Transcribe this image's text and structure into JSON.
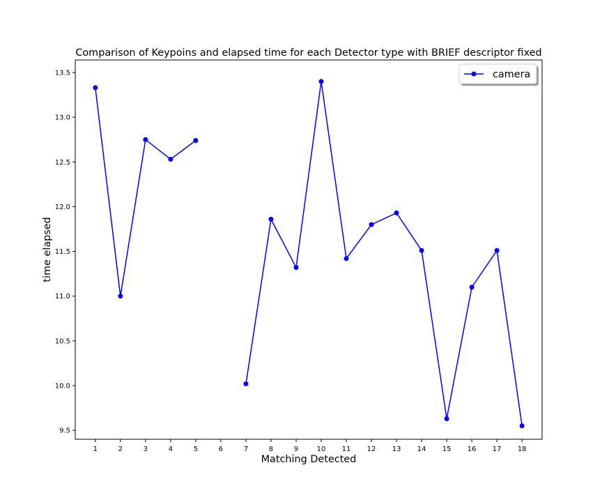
{
  "chart_data": {
    "type": "line",
    "title": "Comparison of Keypoins and elapsed time for each Detector type with BRIEF descriptor fixed",
    "xlabel": "Matching Detected",
    "ylabel": "time elapsed",
    "x_ticks": [
      "1",
      "2",
      "3",
      "4",
      "5",
      "6",
      "7",
      "8",
      "9",
      "10",
      "11",
      "12",
      "13",
      "14",
      "15",
      "16",
      "17",
      "18"
    ],
    "y_ticks": [
      "9.5",
      "10.0",
      "10.5",
      "11.0",
      "11.5",
      "12.0",
      "12.5",
      "13.0",
      "13.5"
    ],
    "xlim": [
      0.2,
      18.8
    ],
    "ylim": [
      9.4,
      13.64
    ],
    "grid": false,
    "legend_position": "top-right",
    "series": [
      {
        "name": "camera",
        "color": "#0000ff",
        "marker": "circle",
        "x": [
          1,
          2,
          3,
          4,
          5,
          6,
          7,
          8,
          9,
          10,
          11,
          12,
          13,
          14,
          15,
          16,
          17,
          18
        ],
        "y": [
          13.33,
          11.0,
          12.75,
          12.53,
          12.74,
          null,
          10.02,
          11.86,
          11.32,
          13.4,
          11.42,
          11.8,
          11.93,
          11.51,
          9.63,
          11.1,
          11.51,
          9.55
        ]
      }
    ]
  }
}
